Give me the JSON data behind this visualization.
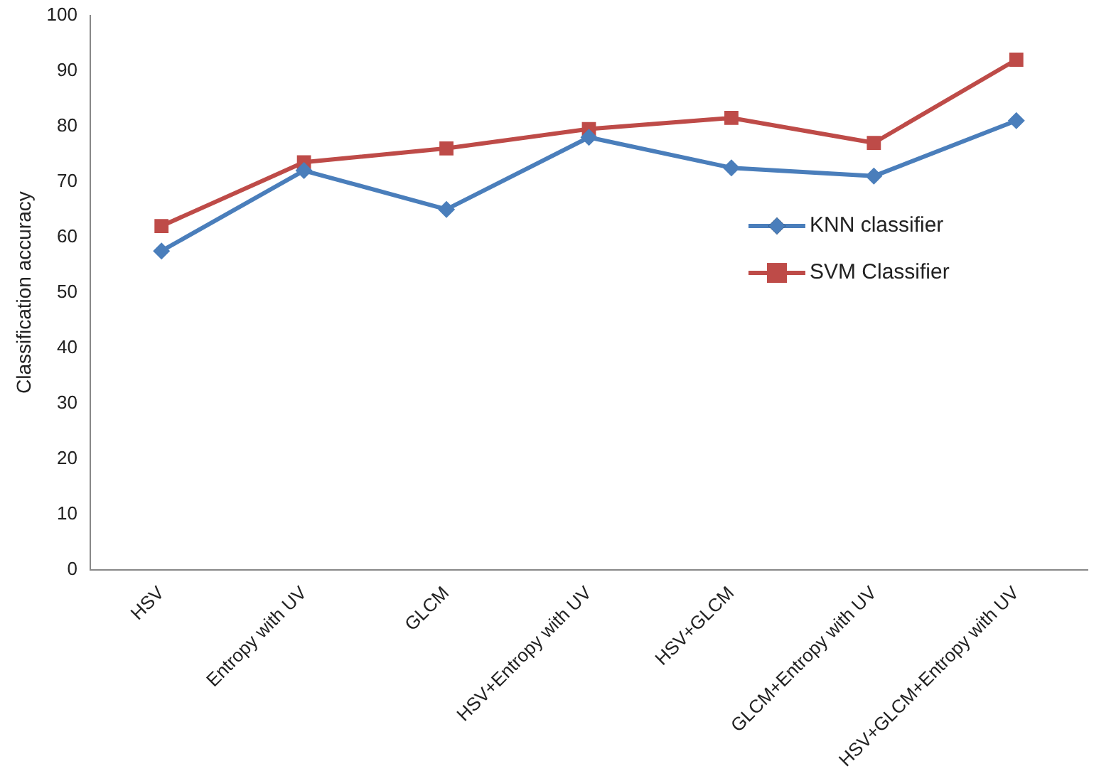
{
  "chart_data": {
    "type": "line",
    "ylabel": "Classification accuracy",
    "categories": [
      "HSV",
      "Entropy with UV",
      "GLCM",
      "HSV+Entropy with UV",
      "HSV+GLCM",
      "GLCM+Entropy with UV",
      "HSV+GLCM+Entropy with UV"
    ],
    "series": [
      {
        "name": "KNN classifier",
        "color": "#4a7ebb",
        "marker": "diamond",
        "values": [
          57.5,
          72,
          65,
          78,
          72.5,
          71,
          81
        ]
      },
      {
        "name": "SVM Classifier",
        "color": "#be4b48",
        "marker": "square",
        "values": [
          62,
          73.5,
          76,
          79.5,
          81.5,
          77,
          92
        ]
      }
    ],
    "ylim": [
      0,
      100
    ],
    "yticks": [
      0,
      10,
      20,
      30,
      40,
      50,
      60,
      70,
      80,
      90,
      100
    ],
    "grid": false,
    "legend": "right"
  }
}
